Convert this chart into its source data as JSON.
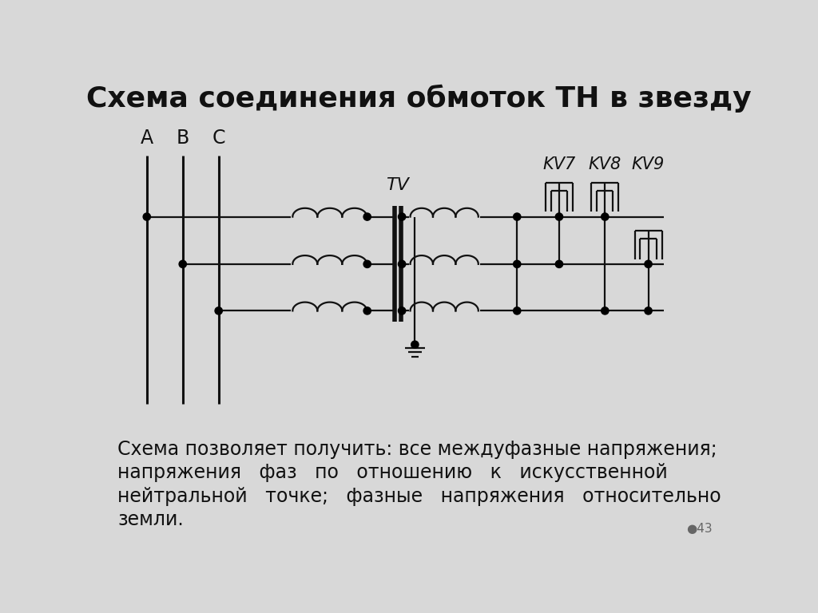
{
  "title": "Схема соединения обмоток ТН в звезду",
  "bg_color": "#d8d8d8",
  "title_fontsize": 26,
  "body_text_line1": "Схема позволяет получить: все междуфазные напряжения;",
  "body_text_line2": "напряжения   фаз   по   отношению   к   искусственной",
  "body_text_line3": "нейтральной   точке;   фазные   напряжения   относительно",
  "body_text_line4": "земли.",
  "body_fontsize": 17,
  "line_color": "#111111",
  "dot_color": "#000000",
  "page_number": "43",
  "lw": 1.6,
  "lw_bus": 2.2,
  "lw_core": 4.0
}
